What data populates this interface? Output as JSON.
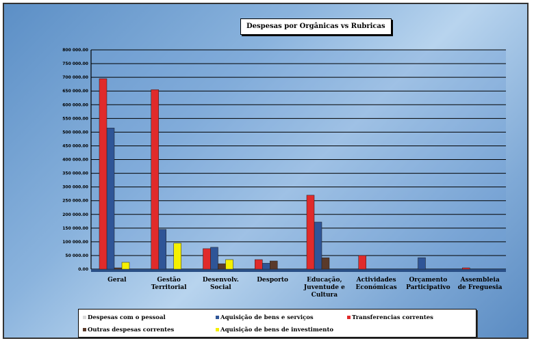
{
  "chart_data": {
    "type": "bar",
    "title": "Despesas por Orgânicas vs Rubricas",
    "categories": [
      [
        "Geral"
      ],
      [
        "Gestão",
        "Territorial"
      ],
      [
        "Desenvolv.",
        "Social"
      ],
      [
        "Desporto"
      ],
      [
        "Educação,",
        "Juventude e",
        "Cultura"
      ],
      [
        "Actividades",
        "Económicas"
      ],
      [
        "Orçamento",
        "Participativo"
      ],
      [
        "Assembleia",
        "de Freguesia"
      ]
    ],
    "y_ticks": [
      "0.00",
      "50 000.00",
      "100 000.00",
      "150 000.00",
      "200 000.00",
      "250 000.00",
      "300 000.00",
      "350 000.00",
      "400 000.00",
      "450 000.00",
      "500 000.00",
      "550 000.00",
      "600 000.00",
      "650 000.00",
      "700 000.00",
      "750 000.00",
      "800 000.00"
    ],
    "ylim": [
      0,
      800000
    ],
    "grid": true,
    "legend_position": "bottom",
    "series": [
      {
        "name": "Despesas com o pessoal",
        "color": "#d9d9d9",
        "values": [
          0,
          0,
          0,
          0,
          0,
          0,
          0,
          0
        ]
      },
      {
        "name": "Aquisição de bens e serviços",
        "color": "#2f5597",
        "values": [
          515000,
          145000,
          80000,
          22000,
          172000,
          0,
          42000,
          0
        ]
      },
      {
        "name": "Transferencias correntes",
        "color": "#e02b2b",
        "values": [
          695000,
          655000,
          75000,
          35000,
          270000,
          50000,
          0,
          5000
        ]
      },
      {
        "name": "Outras despesas correntes",
        "color": "#5a3a2a",
        "values": [
          5000,
          0,
          20000,
          30000,
          42000,
          0,
          0,
          0
        ]
      },
      {
        "name": "Aquisição de bens de investimento",
        "color": "#f5f000",
        "values": [
          25000,
          95000,
          35000,
          0,
          0,
          0,
          0,
          0
        ]
      }
    ]
  }
}
